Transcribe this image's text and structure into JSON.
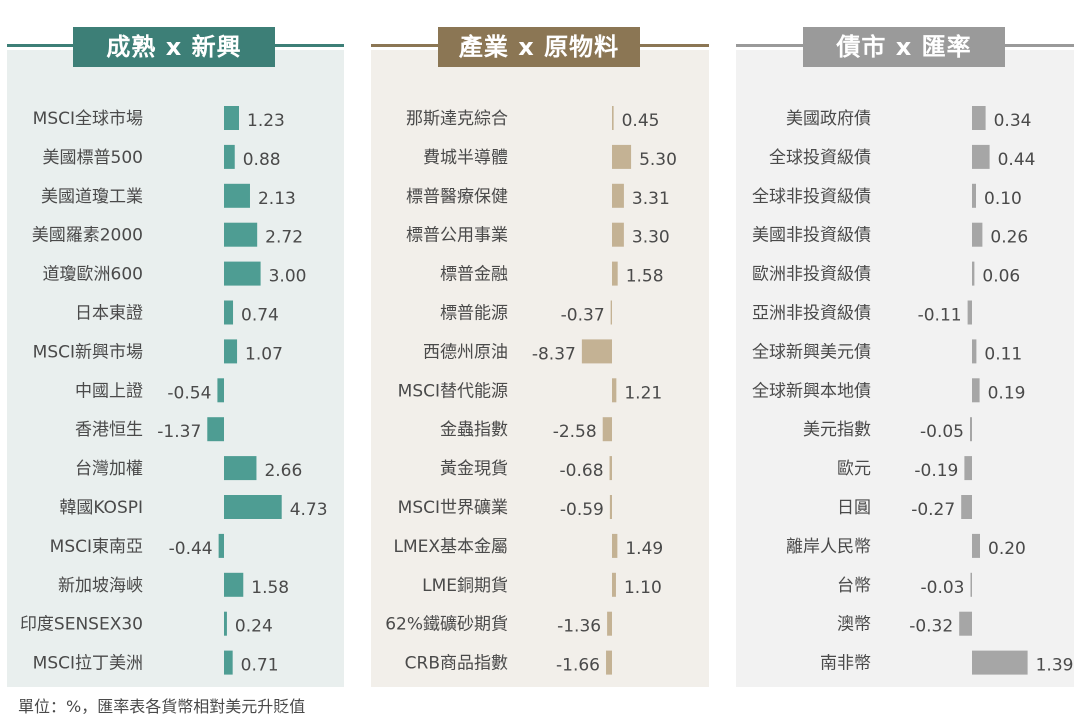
{
  "colors": {
    "teal": "#4e9d93",
    "teal_dark": "#3d7f77",
    "tan": "#c4b294",
    "tan_dark": "#8b7654",
    "gray": "#a6a6a6",
    "gray_dark": "#9a9a9a",
    "panel1_bg": "#e9efee",
    "panel2_bg": "#f2efea",
    "panel3_bg": "#f2f2f2"
  },
  "footnote": "單位：%，匯率表各貨幣相對美元升貶值",
  "chart_data": [
    {
      "type": "bar",
      "orientation": "horizontal",
      "title": "成熟 x 新興",
      "categories": [
        "MSCI全球市場",
        "美國標普500",
        "美國道瓊工業",
        "美國羅素2000",
        "道瓊歐洲600",
        "日本東證",
        "MSCI新興市場",
        "中國上證",
        "香港恒生",
        "台灣加權",
        "韓國KOSPI",
        "MSCI東南亞",
        "新加坡海峽",
        "印度SENSEX30",
        "MSCI拉丁美洲"
      ],
      "values": [
        1.23,
        0.88,
        2.13,
        2.72,
        3.0,
        0.74,
        1.07,
        -0.54,
        -1.37,
        2.66,
        4.73,
        -0.44,
        1.58,
        0.24,
        0.71
      ],
      "value_labels": [
        "1.23",
        "0.88",
        "2.13",
        "2.72",
        "3.00",
        "0.74",
        "1.07",
        "-0.54",
        "-1.37",
        "2.66",
        "4.73",
        "-0.44",
        "1.58",
        "0.24",
        "0.71"
      ]
    },
    {
      "type": "bar",
      "orientation": "horizontal",
      "title": "產業 x 原物料",
      "categories": [
        "那斯達克綜合",
        "費城半導體",
        "標普醫療保健",
        "標普公用事業",
        "標普金融",
        "標普能源",
        "西德州原油",
        "MSCI替代能源",
        "金蟲指數",
        "黃金現貨",
        "MSCI世界礦業",
        "LMEX基本金屬",
        "LME銅期貨",
        "62%鐵礦砂期貨",
        "CRB商品指數"
      ],
      "values": [
        0.45,
        5.3,
        3.31,
        3.3,
        1.58,
        -0.37,
        -8.37,
        1.21,
        -2.58,
        -0.68,
        -0.59,
        1.49,
        1.1,
        -1.36,
        -1.66
      ],
      "value_labels": [
        "0.45",
        "5.30",
        "3.31",
        "3.30",
        "1.58",
        "-0.37",
        "-8.37",
        "1.21",
        "-2.58",
        "-0.68",
        "-0.59",
        "1.49",
        "1.10",
        "-1.36",
        "-1.66"
      ]
    },
    {
      "type": "bar",
      "orientation": "horizontal",
      "title": "債市 x 匯率",
      "categories": [
        "美國政府債",
        "全球投資級債",
        "全球非投資級債",
        "美國非投資級債",
        "歐洲非投資級債",
        "亞洲非投資級債",
        "全球新興美元債",
        "全球新興本地債",
        "美元指數",
        "歐元",
        "日圓",
        "離岸人民幣",
        "台幣",
        "澳幣",
        "南非幣"
      ],
      "values": [
        0.34,
        0.44,
        0.1,
        0.26,
        0.06,
        -0.11,
        0.11,
        0.19,
        -0.05,
        -0.19,
        -0.27,
        0.2,
        -0.03,
        -0.32,
        1.39
      ],
      "value_labels": [
        "0.34",
        "0.44",
        "0.10",
        "0.26",
        "0.06",
        "-0.11",
        "0.11",
        "0.19",
        "-0.05",
        "-0.19",
        "-0.27",
        "0.20",
        "-0.03",
        "-0.32",
        "1.39"
      ]
    }
  ]
}
